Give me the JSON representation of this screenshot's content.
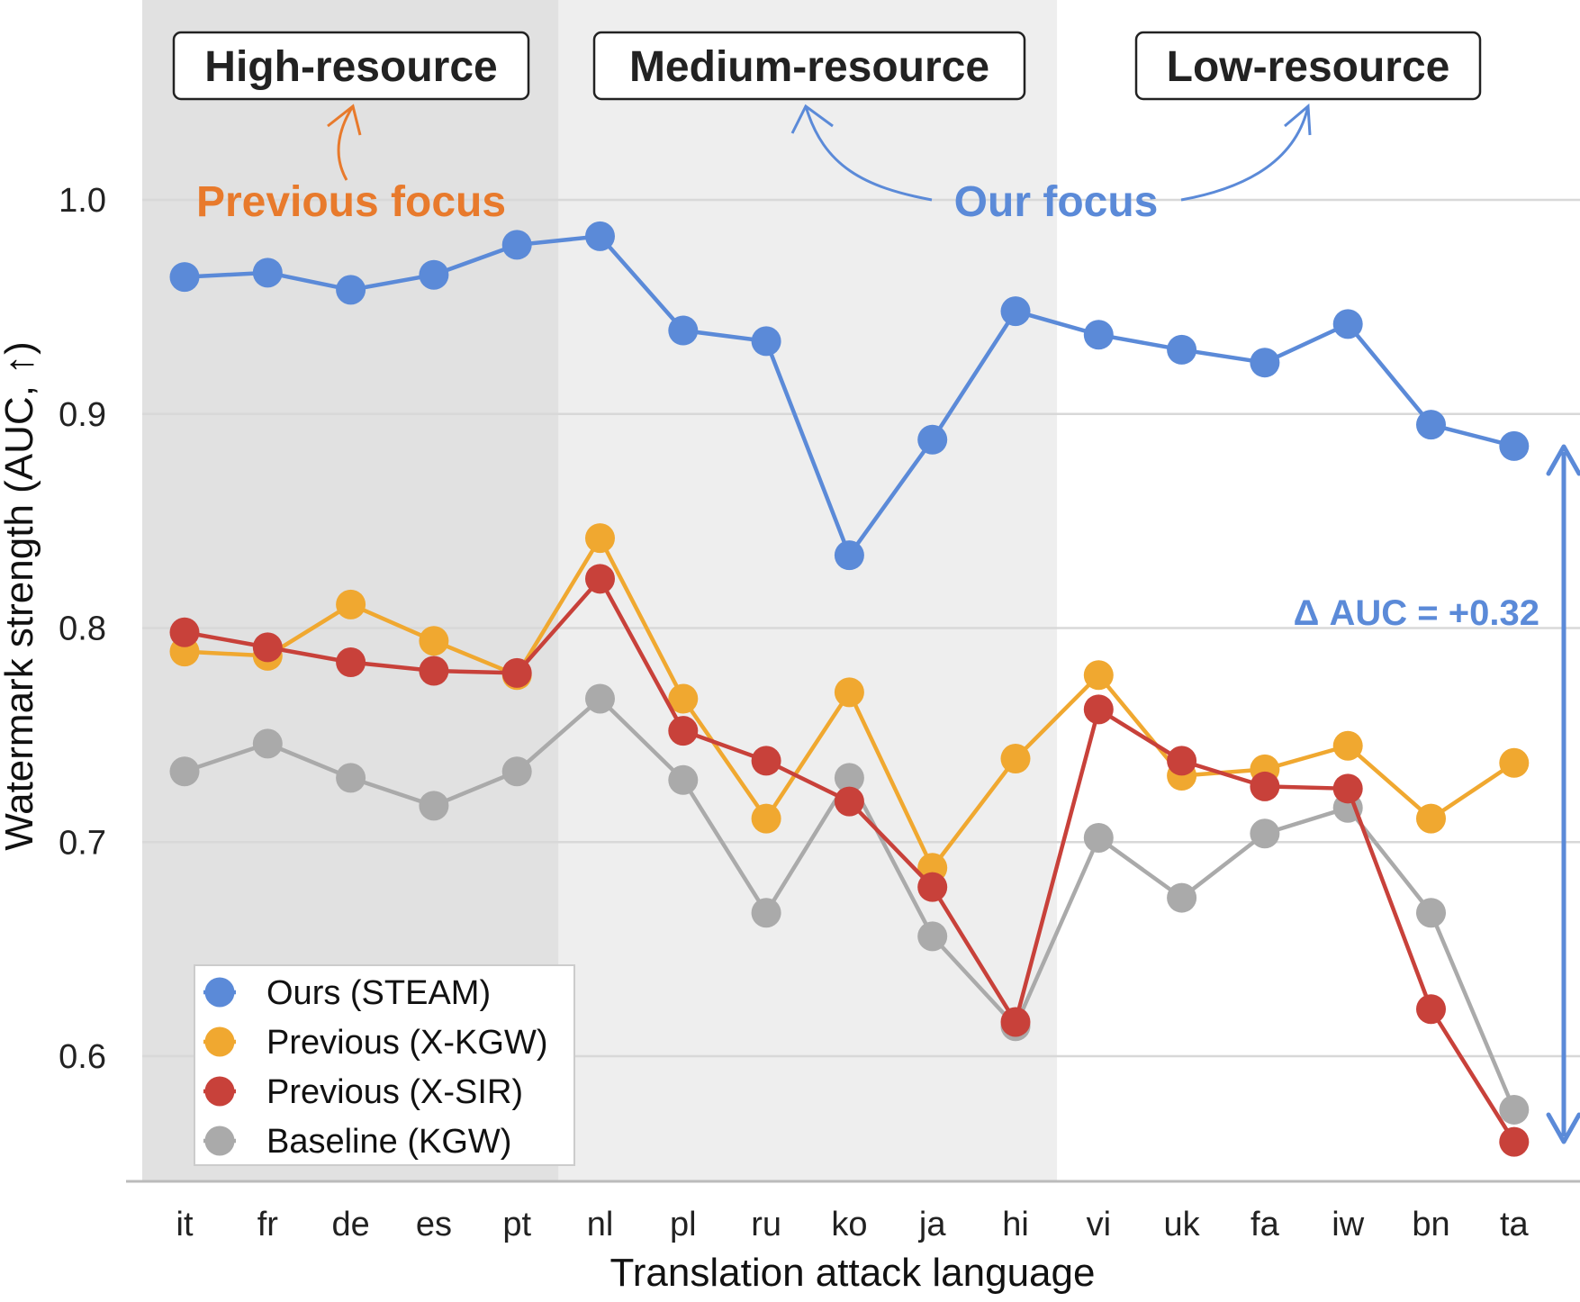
{
  "chart_data": {
    "type": "line",
    "title": "",
    "xlabel": "Translation attack language",
    "ylabel": "Watermark strength (AUC, ↑)",
    "ylim": [
      0.545,
      1.09
    ],
    "yticks": [
      0.6,
      0.7,
      0.8,
      0.9,
      1.0
    ],
    "ytick_labels": [
      "0.6",
      "0.7",
      "0.8",
      "0.9",
      "1.0"
    ],
    "grid": true,
    "legend_position": "bottom-left",
    "categories": [
      "it",
      "fr",
      "de",
      "es",
      "pt",
      "nl",
      "pl",
      "ru",
      "ko",
      "ja",
      "hi",
      "vi",
      "uk",
      "fa",
      "iw",
      "bn",
      "ta"
    ],
    "series": [
      {
        "name": "Baseline (KGW)",
        "color": "#aaaaaa",
        "values": [
          0.733,
          0.746,
          0.73,
          0.717,
          0.733,
          0.767,
          0.729,
          0.667,
          0.73,
          0.656,
          0.614,
          0.702,
          0.674,
          0.704,
          0.716,
          0.667,
          0.575
        ]
      },
      {
        "name": "Previous (X-KGW)",
        "color": "#f0a830",
        "values": [
          0.789,
          0.787,
          0.811,
          0.794,
          0.778,
          0.842,
          0.767,
          0.711,
          0.77,
          0.688,
          0.739,
          0.778,
          0.731,
          0.734,
          0.745,
          0.711,
          0.737
        ]
      },
      {
        "name": "Previous (X-SIR)",
        "color": "#c8413a",
        "values": [
          0.798,
          0.791,
          0.784,
          0.78,
          0.779,
          0.823,
          0.752,
          0.738,
          0.719,
          0.679,
          0.616,
          0.762,
          0.738,
          0.726,
          0.725,
          0.622,
          0.56
        ]
      },
      {
        "name": "Ours (STEAM)",
        "color": "#5b8ad8",
        "values": [
          0.964,
          0.966,
          0.958,
          0.965,
          0.979,
          0.983,
          0.939,
          0.934,
          0.834,
          0.888,
          0.948,
          0.937,
          0.93,
          0.924,
          0.942,
          0.895,
          0.885
        ]
      }
    ],
    "legend_order": [
      "Ours (STEAM)",
      "Previous (X-KGW)",
      "Previous (X-SIR)",
      "Baseline (KGW)"
    ],
    "regions": [
      {
        "label": "High-resource",
        "from": "it",
        "to": "pt",
        "shade": "#e1e1e1"
      },
      {
        "label": "Medium-resource",
        "from": "nl",
        "to": "hi",
        "shade": "#eeeeee"
      },
      {
        "label": "Low-resource",
        "from": "vi",
        "to": "ta",
        "shade": "#ffffff"
      }
    ],
    "annotations": {
      "previous_focus": {
        "text": "Previous focus",
        "color": "#e87a2c"
      },
      "our_focus": {
        "text": "Our focus",
        "color": "#5b8ad8"
      },
      "delta": {
        "text": "Δ AUC = +0.32",
        "color": "#5b8ad8"
      }
    }
  }
}
